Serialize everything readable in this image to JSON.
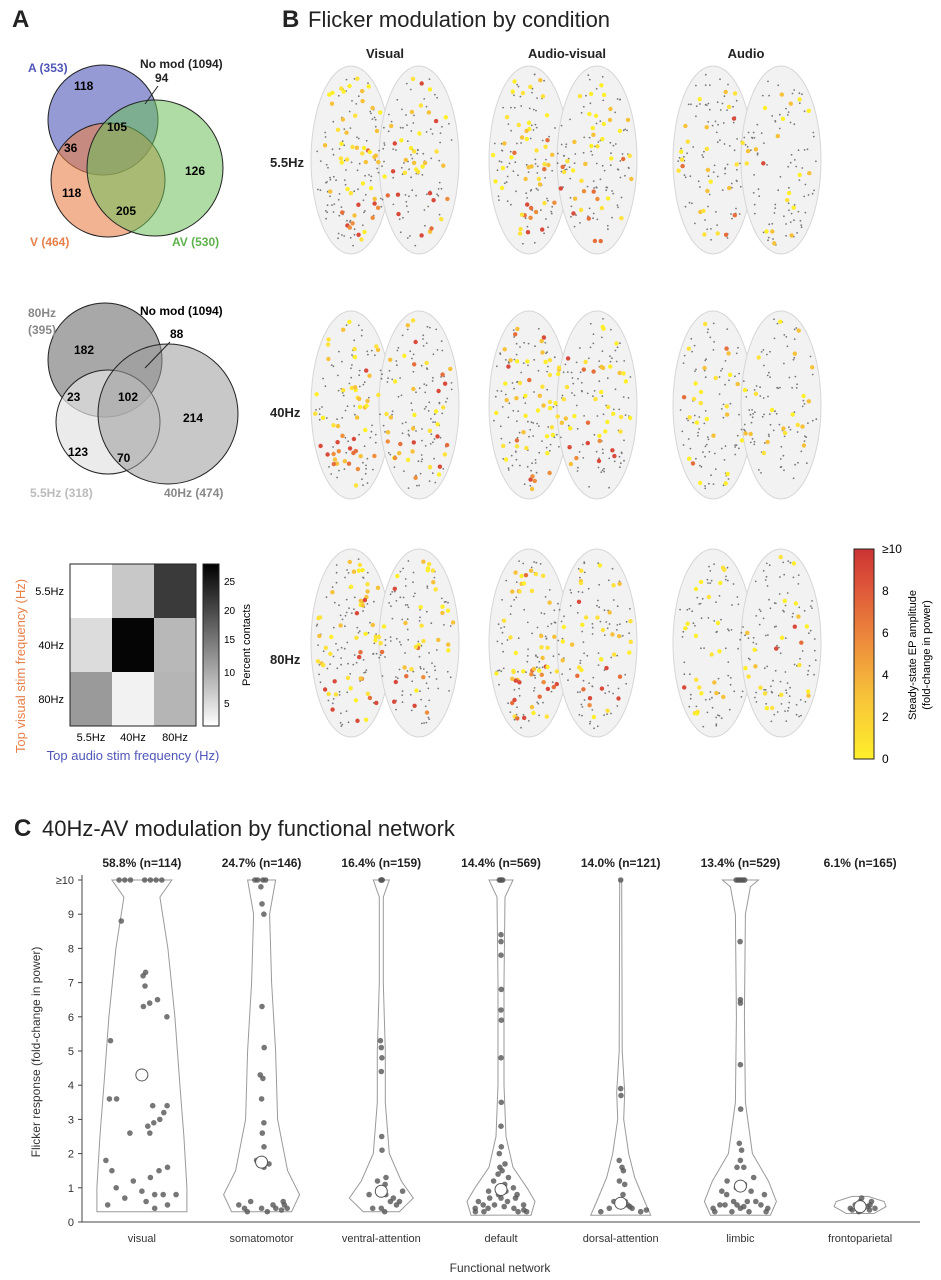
{
  "panelA": {
    "letter": "A",
    "venn1": {
      "labelA": "A (353)",
      "labelV": "V (464)",
      "labelAV": "AV (530)",
      "noMod": "No mod (1094)",
      "nA": "118",
      "noModCount": "94",
      "nAV3": "105",
      "nAVonly": "36",
      "nVonly": "118",
      "nVAV": "205",
      "nAVonlyRight": "126",
      "colors": {
        "A": "#4f56b8",
        "V": "#e8804a",
        "AV": "#6cbf5a"
      }
    },
    "venn2": {
      "label80": "80Hz",
      "count80": "(395)",
      "label55": "5.5Hz (318)",
      "label40": "40Hz (474)",
      "noMod": "No mod (1094)",
      "n80only": "182",
      "noModCount": "88",
      "n3": "102",
      "n80_55": "23",
      "n55only": "123",
      "n55_40": "70",
      "n40only": "214"
    },
    "heatmap": {
      "ylabel": "Top visual stim frequency (Hz)",
      "xlabel": "Top audio stim frequency (Hz)",
      "rows": [
        "5.5Hz",
        "40Hz",
        "80Hz"
      ],
      "cols": [
        "5.5Hz",
        "40Hz",
        "80Hz"
      ],
      "cbarLabel": "Percent contacts",
      "cbarTicks": [
        "25",
        "20",
        "15",
        "10",
        "5"
      ]
    }
  },
  "panelB": {
    "letter": "B",
    "title": "Flicker modulation by condition",
    "columns": [
      "Visual",
      "Audio-visual",
      "Audio"
    ],
    "rows": [
      "5.5Hz",
      "40Hz",
      "80Hz"
    ],
    "colorbar": {
      "ticks": [
        "≥10",
        "8",
        "6",
        "4",
        "2",
        "0"
      ],
      "label1": "Steady-state EP amplitude",
      "label2": "(fold-change in power)"
    }
  },
  "panelC": {
    "letter": "C",
    "title": "40Hz-AV modulation by functional network",
    "ylabel": "Flicker response (fold-change in power)",
    "xlabel": "Functional network"
  },
  "chart_data": {
    "type": "scatter",
    "title": "40Hz-AV modulation by functional network",
    "xlabel": "Functional network",
    "ylabel": "Flicker response (fold-change in power)",
    "ylim": [
      0,
      10
    ],
    "yticks": [
      "0",
      "1",
      "2",
      "3",
      "4",
      "5",
      "6",
      "7",
      "8",
      "9",
      "≥10"
    ],
    "categories": [
      "visual",
      "somatomotor",
      "ventral-attention",
      "default",
      "dorsal-attention",
      "limbic",
      "frontoparietal"
    ],
    "headers": [
      "58.8% (n=114)",
      "24.7% (n=146)",
      "16.4% (n=159)",
      "14.4% (n=569)",
      "14.0% (n=121)",
      "13.4% (n=529)",
      "6.1% (n=165)"
    ],
    "medians": [
      4.3,
      1.75,
      0.9,
      0.95,
      0.55,
      1.05,
      0.45
    ],
    "series": [
      {
        "values": [
          [
            0.3,
            10
          ],
          [
            0.5,
            10
          ],
          [
            0.7,
            10
          ],
          [
            -0.4,
            10
          ],
          [
            -0.6,
            10
          ],
          [
            -0.8,
            10
          ],
          [
            0.1,
            10
          ],
          [
            -1.2,
            8.8
          ],
          [
            -1.0,
            5.3
          ],
          [
            0.15,
            7.3
          ],
          [
            0.05,
            7.2
          ],
          [
            0.1,
            6.9
          ],
          [
            0.5,
            6.5
          ],
          [
            0.05,
            6.3
          ],
          [
            0.25,
            6.4
          ],
          [
            0.8,
            6.0
          ],
          [
            -0.9,
            3.6
          ],
          [
            -0.7,
            3.6
          ],
          [
            0.3,
            3.4
          ],
          [
            0.55,
            3.2
          ],
          [
            0.7,
            3.4
          ],
          [
            0.3,
            2.9
          ],
          [
            0.45,
            3.0
          ],
          [
            0.2,
            2.6
          ],
          [
            -0.3,
            2.6
          ],
          [
            0.15,
            2.8
          ],
          [
            -0.9,
            1.8
          ],
          [
            -0.7,
            1.5
          ],
          [
            0.4,
            1.5
          ],
          [
            0.6,
            1.6
          ],
          [
            0.2,
            1.3
          ],
          [
            -0.2,
            1.2
          ],
          [
            -0.6,
            1.0
          ],
          [
            0.0,
            0.9
          ],
          [
            0.3,
            0.8
          ],
          [
            0.5,
            0.8
          ],
          [
            -0.4,
            0.7
          ],
          [
            0.1,
            0.6
          ],
          [
            0.6,
            0.5
          ],
          [
            -0.8,
            0.5
          ],
          [
            0.3,
            0.4
          ],
          [
            0.8,
            0.8
          ]
        ]
      },
      {
        "values": [
          [
            -0.5,
            10
          ],
          [
            -0.3,
            10
          ],
          [
            0.1,
            10
          ],
          [
            0.3,
            10
          ],
          [
            -0.05,
            9.8
          ],
          [
            0.05,
            9.3
          ],
          [
            0.3,
            9.0
          ],
          [
            0.05,
            6.3
          ],
          [
            0.2,
            5.1
          ],
          [
            -0.1,
            4.3
          ],
          [
            0.1,
            4.2
          ],
          [
            0.0,
            3.6
          ],
          [
            0.15,
            2.9
          ],
          [
            0.05,
            2.6
          ],
          [
            0.1,
            2.2
          ],
          [
            -0.2,
            1.8
          ],
          [
            0.1,
            1.6
          ],
          [
            0.3,
            1.7
          ],
          [
            -0.6,
            0.4
          ],
          [
            -0.8,
            0.5
          ],
          [
            0.4,
            0.5
          ],
          [
            0.6,
            0.6
          ],
          [
            0.8,
            0.5
          ],
          [
            0.2,
            0.3
          ],
          [
            0.0,
            0.4
          ],
          [
            -0.3,
            0.6
          ],
          [
            0.5,
            0.4
          ],
          [
            -0.5,
            0.3
          ],
          [
            0.7,
            0.35
          ],
          [
            0.9,
            0.4
          ]
        ]
      },
      {
        "values": [
          [
            -0.05,
            10
          ],
          [
            0.05,
            10
          ],
          [
            0.12,
            10
          ],
          [
            -0.15,
            5.3
          ],
          [
            0.0,
            5.1
          ],
          [
            0.1,
            4.8
          ],
          [
            0.0,
            4.4
          ],
          [
            0.05,
            2.5
          ],
          [
            0.1,
            2.1
          ],
          [
            -0.2,
            1.2
          ],
          [
            0.2,
            1.1
          ],
          [
            -0.1,
            0.9
          ],
          [
            0.15,
            0.8
          ],
          [
            0.4,
            0.7
          ],
          [
            -0.4,
            0.8
          ],
          [
            0.3,
            0.6
          ],
          [
            0.6,
            0.6
          ],
          [
            0.0,
            0.4
          ],
          [
            0.5,
            0.5
          ],
          [
            -0.5,
            0.4
          ],
          [
            0.7,
            0.9
          ],
          [
            0.25,
            1.3
          ],
          [
            0.2,
            0.3
          ]
        ]
      },
      {
        "values": [
          [
            -0.15,
            10
          ],
          [
            -0.05,
            10
          ],
          [
            0.05,
            10
          ],
          [
            0.15,
            10
          ],
          [
            0.0,
            8.4
          ],
          [
            0.0,
            8.2
          ],
          [
            0.0,
            7.8
          ],
          [
            0.05,
            6.8
          ],
          [
            0.0,
            6.2
          ],
          [
            0.05,
            5.9
          ],
          [
            0.0,
            4.8
          ],
          [
            0.05,
            3.5
          ],
          [
            0.0,
            2.8
          ],
          [
            0.05,
            2.2
          ],
          [
            -0.1,
            1.6
          ],
          [
            0.1,
            1.5
          ],
          [
            -0.3,
            1.2
          ],
          [
            0.3,
            1.3
          ],
          [
            -0.5,
            0.9
          ],
          [
            0.5,
            1.0
          ],
          [
            -0.7,
            0.6
          ],
          [
            0.7,
            0.5
          ],
          [
            -0.2,
            0.5
          ],
          [
            0.2,
            0.6
          ],
          [
            -0.6,
            0.3
          ],
          [
            0.6,
            0.3
          ],
          [
            -0.4,
            0.4
          ],
          [
            0.4,
            0.4
          ],
          [
            -0.8,
            0.4
          ],
          [
            0.8,
            0.35
          ],
          [
            0.0,
            0.7
          ],
          [
            -0.1,
            0.8
          ],
          [
            0.15,
            1.1
          ],
          [
            -0.25,
            1.4
          ],
          [
            0.35,
            1.7
          ],
          [
            0.1,
            0.45
          ],
          [
            -0.9,
            0.3
          ],
          [
            0.9,
            0.3
          ],
          [
            -0.15,
            2.0
          ],
          [
            0.2,
            0.9
          ],
          [
            -0.35,
            0.7
          ],
          [
            0.45,
            0.7
          ],
          [
            0.65,
            0.8
          ],
          [
            -0.55,
            0.5
          ]
        ]
      },
      {
        "values": [
          [
            0.0,
            10
          ],
          [
            0.0,
            3.9
          ],
          [
            0.05,
            3.7
          ],
          [
            -0.2,
            1.8
          ],
          [
            0.1,
            1.6
          ],
          [
            0.2,
            1.5
          ],
          [
            -0.1,
            1.2
          ],
          [
            0.3,
            1.1
          ],
          [
            -0.3,
            0.6
          ],
          [
            0.3,
            0.5
          ],
          [
            0.5,
            0.4
          ],
          [
            -0.5,
            0.4
          ],
          [
            0.7,
            0.3
          ],
          [
            -0.7,
            0.3
          ],
          [
            0.1,
            0.8
          ],
          [
            0.2,
            0.6
          ],
          [
            0.4,
            0.45
          ],
          [
            0.9,
            0.35
          ]
        ]
      },
      {
        "values": [
          [
            -0.25,
            10
          ],
          [
            -0.15,
            10
          ],
          [
            -0.05,
            10
          ],
          [
            0.05,
            10
          ],
          [
            0.15,
            10
          ],
          [
            0.25,
            10
          ],
          [
            -0.05,
            8.2
          ],
          [
            0.0,
            6.5
          ],
          [
            0.0,
            6.4
          ],
          [
            0.0,
            4.6
          ],
          [
            0.05,
            3.3
          ],
          [
            -0.1,
            2.3
          ],
          [
            0.1,
            2.1
          ],
          [
            -0.3,
            1.6
          ],
          [
            0.3,
            1.6
          ],
          [
            -0.5,
            1.2
          ],
          [
            0.5,
            1.3
          ],
          [
            -0.7,
            0.9
          ],
          [
            0.7,
            0.8
          ],
          [
            -0.4,
            0.8
          ],
          [
            0.4,
            0.9
          ],
          [
            -0.6,
            0.5
          ],
          [
            0.6,
            0.5
          ],
          [
            -0.8,
            0.4
          ],
          [
            0.8,
            0.4
          ],
          [
            -0.2,
            0.6
          ],
          [
            0.2,
            0.6
          ],
          [
            0.0,
            0.4
          ],
          [
            -0.3,
            0.3
          ],
          [
            0.3,
            0.3
          ],
          [
            -0.9,
            0.3
          ],
          [
            0.9,
            0.3
          ],
          [
            0.0,
            1.8
          ],
          [
            -0.15,
            1.0
          ],
          [
            0.15,
            1.1
          ],
          [
            0.45,
            0.6
          ],
          [
            -0.45,
            0.5
          ],
          [
            0.1,
            0.45
          ],
          [
            -0.1,
            0.5
          ]
        ]
      },
      {
        "values": [
          [
            -0.4,
            0.4
          ],
          [
            -0.2,
            0.5
          ],
          [
            0.0,
            0.6
          ],
          [
            0.2,
            0.7
          ],
          [
            0.4,
            0.5
          ],
          [
            0.6,
            0.4
          ],
          [
            -0.6,
            0.35
          ],
          [
            0.1,
            0.4
          ],
          [
            0.3,
            0.45
          ],
          [
            -0.1,
            0.3
          ],
          [
            0.5,
            0.6
          ],
          [
            0.7,
            0.35
          ]
        ]
      }
    ]
  }
}
